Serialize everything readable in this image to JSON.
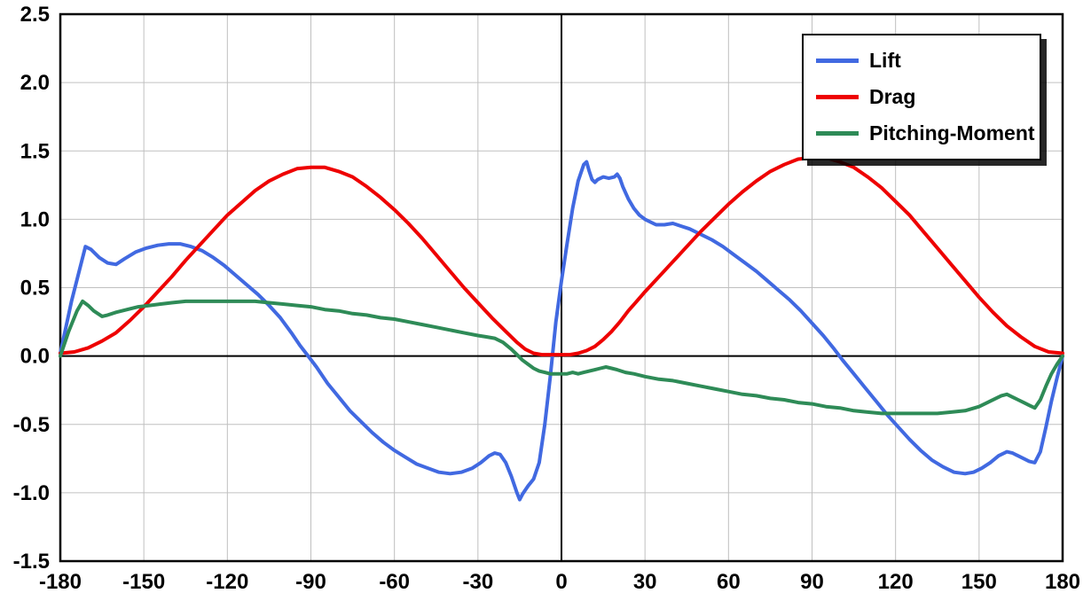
{
  "chart_data": {
    "type": "line",
    "title": "",
    "grid": true,
    "legend_position": "top-right",
    "background_color": "#ffffff",
    "grid_color": "#c0c0c0",
    "axis_color": "#000000",
    "xlim": [
      -180,
      180
    ],
    "ylim": [
      -1.5,
      2.5
    ],
    "xticks": [
      -180,
      -150,
      -120,
      -90,
      -60,
      -30,
      0,
      30,
      60,
      90,
      120,
      150,
      180
    ],
    "xtick_labels": [
      "-180",
      "-150",
      "-120",
      "-90",
      "-60",
      "-30",
      "0",
      "30",
      "60",
      "90",
      "120",
      "150",
      "180"
    ],
    "yticks": [
      -1.5,
      -1.0,
      -0.5,
      0.0,
      0.5,
      1.0,
      1.5,
      2.0,
      2.5
    ],
    "ytick_labels": [
      "-1.5",
      "-1.0",
      "-0.5",
      "0.0",
      "0.5",
      "1.0",
      "1.5",
      "2.0",
      "2.5"
    ],
    "series": [
      {
        "name": "Lift",
        "color": "#4169E1",
        "points": [
          [
            -180,
            0.02
          ],
          [
            -176,
            0.4
          ],
          [
            -171,
            0.8
          ],
          [
            -169,
            0.78
          ],
          [
            -166,
            0.72
          ],
          [
            -163,
            0.68
          ],
          [
            -160,
            0.67
          ],
          [
            -157,
            0.71
          ],
          [
            -153,
            0.76
          ],
          [
            -149,
            0.79
          ],
          [
            -145,
            0.81
          ],
          [
            -141,
            0.82
          ],
          [
            -137,
            0.82
          ],
          [
            -133,
            0.8
          ],
          [
            -129,
            0.77
          ],
          [
            -125,
            0.72
          ],
          [
            -121,
            0.66
          ],
          [
            -117,
            0.59
          ],
          [
            -113,
            0.52
          ],
          [
            -109,
            0.45
          ],
          [
            -105,
            0.37
          ],
          [
            -101,
            0.28
          ],
          [
            -97,
            0.17
          ],
          [
            -94,
            0.08
          ],
          [
            -91,
            0.0
          ],
          [
            -88,
            -0.08
          ],
          [
            -84,
            -0.2
          ],
          [
            -80,
            -0.3
          ],
          [
            -76,
            -0.4
          ],
          [
            -72,
            -0.48
          ],
          [
            -68,
            -0.56
          ],
          [
            -64,
            -0.63
          ],
          [
            -60,
            -0.69
          ],
          [
            -56,
            -0.74
          ],
          [
            -52,
            -0.79
          ],
          [
            -48,
            -0.82
          ],
          [
            -44,
            -0.85
          ],
          [
            -40,
            -0.86
          ],
          [
            -36,
            -0.85
          ],
          [
            -32,
            -0.82
          ],
          [
            -29,
            -0.78
          ],
          [
            -26,
            -0.73
          ],
          [
            -24,
            -0.71
          ],
          [
            -22,
            -0.72
          ],
          [
            -20,
            -0.78
          ],
          [
            -18,
            -0.88
          ],
          [
            -16,
            -1.0
          ],
          [
            -15,
            -1.05
          ],
          [
            -14,
            -1.01
          ],
          [
            -12,
            -0.95
          ],
          [
            -10,
            -0.9
          ],
          [
            -8,
            -0.78
          ],
          [
            -6,
            -0.5
          ],
          [
            -4,
            -0.15
          ],
          [
            -2,
            0.25
          ],
          [
            0,
            0.55
          ],
          [
            2,
            0.82
          ],
          [
            4,
            1.08
          ],
          [
            6,
            1.28
          ],
          [
            8,
            1.4
          ],
          [
            9,
            1.42
          ],
          [
            10,
            1.35
          ],
          [
            11,
            1.29
          ],
          [
            12,
            1.27
          ],
          [
            13,
            1.29
          ],
          [
            15,
            1.31
          ],
          [
            17,
            1.3
          ],
          [
            19,
            1.31
          ],
          [
            20,
            1.33
          ],
          [
            21,
            1.3
          ],
          [
            22,
            1.24
          ],
          [
            24,
            1.15
          ],
          [
            26,
            1.08
          ],
          [
            28,
            1.03
          ],
          [
            30,
            1.0
          ],
          [
            32,
            0.98
          ],
          [
            34,
            0.96
          ],
          [
            37,
            0.96
          ],
          [
            40,
            0.97
          ],
          [
            43,
            0.95
          ],
          [
            46,
            0.93
          ],
          [
            50,
            0.89
          ],
          [
            54,
            0.85
          ],
          [
            58,
            0.8
          ],
          [
            62,
            0.74
          ],
          [
            66,
            0.68
          ],
          [
            70,
            0.62
          ],
          [
            74,
            0.55
          ],
          [
            78,
            0.48
          ],
          [
            82,
            0.41
          ],
          [
            86,
            0.33
          ],
          [
            90,
            0.24
          ],
          [
            94,
            0.15
          ],
          [
            98,
            0.05
          ],
          [
            101,
            -0.03
          ],
          [
            105,
            -0.13
          ],
          [
            109,
            -0.23
          ],
          [
            113,
            -0.33
          ],
          [
            117,
            -0.43
          ],
          [
            121,
            -0.52
          ],
          [
            125,
            -0.61
          ],
          [
            129,
            -0.69
          ],
          [
            133,
            -0.76
          ],
          [
            137,
            -0.81
          ],
          [
            141,
            -0.85
          ],
          [
            145,
            -0.86
          ],
          [
            148,
            -0.85
          ],
          [
            151,
            -0.82
          ],
          [
            154,
            -0.78
          ],
          [
            157,
            -0.73
          ],
          [
            160,
            -0.7
          ],
          [
            162,
            -0.71
          ],
          [
            164,
            -0.73
          ],
          [
            166,
            -0.75
          ],
          [
            168,
            -0.77
          ],
          [
            170,
            -0.78
          ],
          [
            172,
            -0.7
          ],
          [
            174,
            -0.52
          ],
          [
            176,
            -0.33
          ],
          [
            178,
            -0.16
          ],
          [
            180,
            0.0
          ]
        ]
      },
      {
        "name": "Drag",
        "color": "#EE0000",
        "points": [
          [
            -180,
            0.02
          ],
          [
            -175,
            0.03
          ],
          [
            -170,
            0.06
          ],
          [
            -165,
            0.11
          ],
          [
            -160,
            0.17
          ],
          [
            -155,
            0.26
          ],
          [
            -150,
            0.36
          ],
          [
            -145,
            0.47
          ],
          [
            -140,
            0.58
          ],
          [
            -135,
            0.7
          ],
          [
            -130,
            0.81
          ],
          [
            -125,
            0.92
          ],
          [
            -120,
            1.03
          ],
          [
            -115,
            1.12
          ],
          [
            -110,
            1.21
          ],
          [
            -105,
            1.28
          ],
          [
            -100,
            1.33
          ],
          [
            -95,
            1.37
          ],
          [
            -90,
            1.38
          ],
          [
            -85,
            1.38
          ],
          [
            -80,
            1.35
          ],
          [
            -75,
            1.31
          ],
          [
            -70,
            1.24
          ],
          [
            -65,
            1.16
          ],
          [
            -60,
            1.07
          ],
          [
            -55,
            0.97
          ],
          [
            -50,
            0.86
          ],
          [
            -45,
            0.74
          ],
          [
            -40,
            0.62
          ],
          [
            -35,
            0.5
          ],
          [
            -30,
            0.39
          ],
          [
            -25,
            0.28
          ],
          [
            -20,
            0.18
          ],
          [
            -16,
            0.1
          ],
          [
            -13,
            0.05
          ],
          [
            -10,
            0.02
          ],
          [
            -7,
            0.01
          ],
          [
            -3,
            0.01
          ],
          [
            0,
            0.01
          ],
          [
            3,
            0.01
          ],
          [
            6,
            0.02
          ],
          [
            9,
            0.04
          ],
          [
            12,
            0.07
          ],
          [
            15,
            0.12
          ],
          [
            18,
            0.18
          ],
          [
            21,
            0.25
          ],
          [
            24,
            0.33
          ],
          [
            27,
            0.4
          ],
          [
            30,
            0.47
          ],
          [
            35,
            0.58
          ],
          [
            40,
            0.69
          ],
          [
            45,
            0.8
          ],
          [
            50,
            0.91
          ],
          [
            55,
            1.01
          ],
          [
            60,
            1.11
          ],
          [
            65,
            1.2
          ],
          [
            70,
            1.28
          ],
          [
            75,
            1.35
          ],
          [
            80,
            1.4
          ],
          [
            85,
            1.44
          ],
          [
            90,
            1.45
          ],
          [
            95,
            1.45
          ],
          [
            100,
            1.42
          ],
          [
            105,
            1.38
          ],
          [
            110,
            1.31
          ],
          [
            115,
            1.23
          ],
          [
            120,
            1.13
          ],
          [
            125,
            1.03
          ],
          [
            130,
            0.91
          ],
          [
            135,
            0.79
          ],
          [
            140,
            0.67
          ],
          [
            145,
            0.55
          ],
          [
            150,
            0.43
          ],
          [
            155,
            0.32
          ],
          [
            160,
            0.22
          ],
          [
            165,
            0.14
          ],
          [
            170,
            0.07
          ],
          [
            175,
            0.03
          ],
          [
            180,
            0.02
          ]
        ]
      },
      {
        "name": "Pitching-Moment",
        "color": "#2E8B57",
        "points": [
          [
            -180,
            0.0
          ],
          [
            -177,
            0.18
          ],
          [
            -174,
            0.33
          ],
          [
            -172,
            0.4
          ],
          [
            -170,
            0.37
          ],
          [
            -168,
            0.33
          ],
          [
            -165,
            0.29
          ],
          [
            -163,
            0.3
          ],
          [
            -160,
            0.32
          ],
          [
            -156,
            0.34
          ],
          [
            -152,
            0.36
          ],
          [
            -148,
            0.37
          ],
          [
            -144,
            0.38
          ],
          [
            -140,
            0.39
          ],
          [
            -135,
            0.4
          ],
          [
            -130,
            0.4
          ],
          [
            -125,
            0.4
          ],
          [
            -120,
            0.4
          ],
          [
            -115,
            0.4
          ],
          [
            -110,
            0.4
          ],
          [
            -105,
            0.39
          ],
          [
            -100,
            0.38
          ],
          [
            -95,
            0.37
          ],
          [
            -90,
            0.36
          ],
          [
            -85,
            0.34
          ],
          [
            -80,
            0.33
          ],
          [
            -75,
            0.31
          ],
          [
            -70,
            0.3
          ],
          [
            -65,
            0.28
          ],
          [
            -60,
            0.27
          ],
          [
            -55,
            0.25
          ],
          [
            -50,
            0.23
          ],
          [
            -45,
            0.21
          ],
          [
            -40,
            0.19
          ],
          [
            -35,
            0.17
          ],
          [
            -30,
            0.15
          ],
          [
            -27,
            0.14
          ],
          [
            -24,
            0.13
          ],
          [
            -21,
            0.1
          ],
          [
            -18,
            0.05
          ],
          [
            -16,
            0.01
          ],
          [
            -14,
            -0.03
          ],
          [
            -12,
            -0.06
          ],
          [
            -10,
            -0.09
          ],
          [
            -8,
            -0.11
          ],
          [
            -6,
            -0.12
          ],
          [
            -4,
            -0.13
          ],
          [
            -2,
            -0.13
          ],
          [
            0,
            -0.13
          ],
          [
            2,
            -0.13
          ],
          [
            4,
            -0.12
          ],
          [
            6,
            -0.13
          ],
          [
            8,
            -0.12
          ],
          [
            10,
            -0.11
          ],
          [
            12,
            -0.1
          ],
          [
            14,
            -0.09
          ],
          [
            16,
            -0.08
          ],
          [
            18,
            -0.09
          ],
          [
            20,
            -0.1
          ],
          [
            23,
            -0.12
          ],
          [
            26,
            -0.13
          ],
          [
            30,
            -0.15
          ],
          [
            35,
            -0.17
          ],
          [
            40,
            -0.18
          ],
          [
            45,
            -0.2
          ],
          [
            50,
            -0.22
          ],
          [
            55,
            -0.24
          ],
          [
            60,
            -0.26
          ],
          [
            65,
            -0.28
          ],
          [
            70,
            -0.29
          ],
          [
            75,
            -0.31
          ],
          [
            80,
            -0.32
          ],
          [
            85,
            -0.34
          ],
          [
            90,
            -0.35
          ],
          [
            95,
            -0.37
          ],
          [
            100,
            -0.38
          ],
          [
            105,
            -0.4
          ],
          [
            110,
            -0.41
          ],
          [
            115,
            -0.42
          ],
          [
            120,
            -0.42
          ],
          [
            125,
            -0.42
          ],
          [
            130,
            -0.42
          ],
          [
            135,
            -0.42
          ],
          [
            140,
            -0.41
          ],
          [
            145,
            -0.4
          ],
          [
            150,
            -0.37
          ],
          [
            153,
            -0.34
          ],
          [
            156,
            -0.31
          ],
          [
            158,
            -0.29
          ],
          [
            160,
            -0.28
          ],
          [
            162,
            -0.3
          ],
          [
            164,
            -0.32
          ],
          [
            166,
            -0.34
          ],
          [
            168,
            -0.36
          ],
          [
            170,
            -0.38
          ],
          [
            172,
            -0.32
          ],
          [
            174,
            -0.22
          ],
          [
            176,
            -0.13
          ],
          [
            178,
            -0.06
          ],
          [
            180,
            0.0
          ]
        ]
      }
    ]
  }
}
